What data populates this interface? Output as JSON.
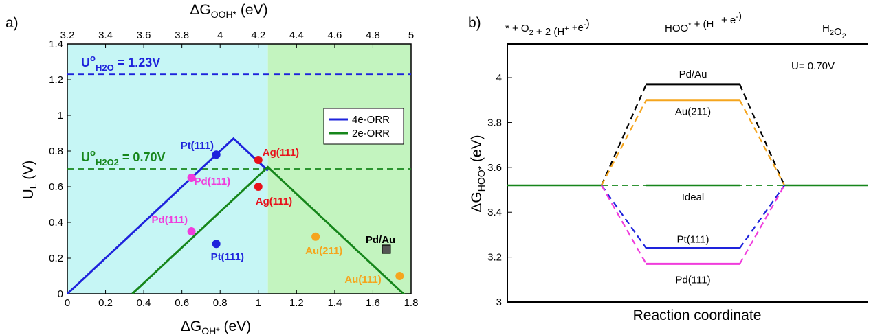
{
  "chart_data": [
    {
      "panel_label": "a)",
      "type": "line",
      "xlabel": "ΔG",
      "xlabel_sub": "OH*",
      "xlabel_unit": " (eV)",
      "x2label": "ΔG",
      "x2label_sub": "OOH*",
      "x2label_unit": " (eV)",
      "ylabel": "U",
      "ylabel_sub": "L",
      "ylabel_unit": " (V)",
      "xlim": [
        0,
        1.8
      ],
      "ylim": [
        0,
        1.4
      ],
      "x2lim": [
        3.2,
        5.0
      ],
      "xticks": [
        "0",
        "0.2",
        "0.4",
        "0.6",
        "0.8",
        "1",
        "1.2",
        "1.4",
        "1.6",
        "1.8"
      ],
      "x2ticks": [
        "3.2",
        "3.4",
        "3.6",
        "3.8",
        "4",
        "4.2",
        "4.4",
        "4.6",
        "4.8",
        "5"
      ],
      "yticks": [
        "0",
        "0.2",
        "0.4",
        "0.6",
        "0.8",
        "1",
        "1.2",
        "1.4"
      ],
      "regions": [
        {
          "x": [
            0,
            1.05
          ],
          "color": "#c6f6f5"
        },
        {
          "x": [
            1.05,
            1.8
          ],
          "color": "#c3f4bf"
        }
      ],
      "series": [
        {
          "name": "4e-ORR",
          "color": "#1e23dc",
          "x": [
            0,
            0.87,
            1.05
          ],
          "y": [
            0,
            0.87,
            0.69
          ]
        },
        {
          "name": "2e-ORR",
          "color": "#16861b",
          "x": [
            0.34,
            1.05,
            1.8
          ],
          "y": [
            0,
            0.71,
            -0.04
          ]
        }
      ],
      "reference_lines": [
        {
          "y": 1.23,
          "color": "#1e23dc",
          "text_main": "U",
          "text_sup": "o",
          "text_sub": "H2O",
          "text_tail": " = 1.23V"
        },
        {
          "y": 0.7,
          "color": "#16861b",
          "text_main": "U",
          "text_sup": "o",
          "text_sub": "H2O2",
          "text_tail": " = 0.70V"
        }
      ],
      "points": [
        {
          "label": "Pt(111)",
          "x": 0.78,
          "y": 0.78,
          "color": "#1e23dc",
          "marker": "circle"
        },
        {
          "label": "Pt(111)",
          "x": 0.78,
          "y": 0.28,
          "color": "#1e23dc",
          "marker": "circle"
        },
        {
          "label": "Pd(111)",
          "x": 0.65,
          "y": 0.65,
          "color": "#f03cdc",
          "marker": "circle"
        },
        {
          "label": "Pd(111)",
          "x": 0.65,
          "y": 0.35,
          "color": "#f03cdc",
          "marker": "circle"
        },
        {
          "label": "Ag(111)",
          "x": 1.0,
          "y": 0.75,
          "color": "#e8101a",
          "marker": "circle"
        },
        {
          "label": "Ag(111)",
          "x": 1.0,
          "y": 0.6,
          "color": "#e8101a",
          "marker": "circle"
        },
        {
          "label": "Au(211)",
          "x": 1.3,
          "y": 0.32,
          "color": "#f5a51d",
          "marker": "circle"
        },
        {
          "label": "Au(111)",
          "x": 1.74,
          "y": 0.1,
          "color": "#f5a51d",
          "marker": "circle"
        },
        {
          "label": "Pd/Au",
          "x": 1.67,
          "y": 0.25,
          "color": "#555555",
          "marker": "square"
        }
      ],
      "legend": {
        "placement": "upper-right",
        "entries": [
          "4e-ORR",
          "2e-ORR"
        ]
      }
    },
    {
      "panel_label": "b)",
      "type": "line",
      "ylabel": "ΔG",
      "ylabel_sub": "HOO*",
      "ylabel_unit": " (eV)",
      "xlabel": "Reaction coordinate",
      "ylim": [
        3.0,
        4.15
      ],
      "yticks": [
        "3",
        "3.2",
        "3.4",
        "3.6",
        "3.8",
        "4"
      ],
      "annotation": "U= 0.70V",
      "states": [
        {
          "main": "* + O",
          "parts": [
            {
              "t": "* + O"
            },
            {
              "t": "2",
              "sub": true
            },
            {
              "t": " + 2 (H"
            },
            {
              "t": "+",
              "sup": true
            },
            {
              "t": " +e"
            },
            {
              "t": "-",
              "sup": true
            },
            {
              "t": ")"
            }
          ]
        },
        {
          "main": "HOO* + (H",
          "parts": [
            {
              "t": "HOO"
            },
            {
              "t": "*",
              "sup": true
            },
            {
              "t": " + (H"
            },
            {
              "t": "+",
              "sup": true
            },
            {
              "t": " + e"
            },
            {
              "t": "-",
              "sup": true
            },
            {
              "t": ")"
            }
          ]
        },
        {
          "main": "H2O2",
          "parts": [
            {
              "t": "H"
            },
            {
              "t": "2",
              "sub": true
            },
            {
              "t": "O"
            },
            {
              "t": "2",
              "sub": true
            }
          ]
        }
      ],
      "initial_level": 3.52,
      "final_level": 3.52,
      "series": [
        {
          "name": "Pd/Au",
          "value": 3.97,
          "color": "#000000"
        },
        {
          "name": "Au(211)",
          "value": 3.9,
          "color": "#f5a51d"
        },
        {
          "name": "Ideal",
          "value": 3.52,
          "color": "#16861b"
        },
        {
          "name": "Pt(111)",
          "value": 3.24,
          "color": "#1e23dc"
        },
        {
          "name": "Pd(111)",
          "value": 3.17,
          "color": "#f03cdc"
        }
      ]
    }
  ]
}
